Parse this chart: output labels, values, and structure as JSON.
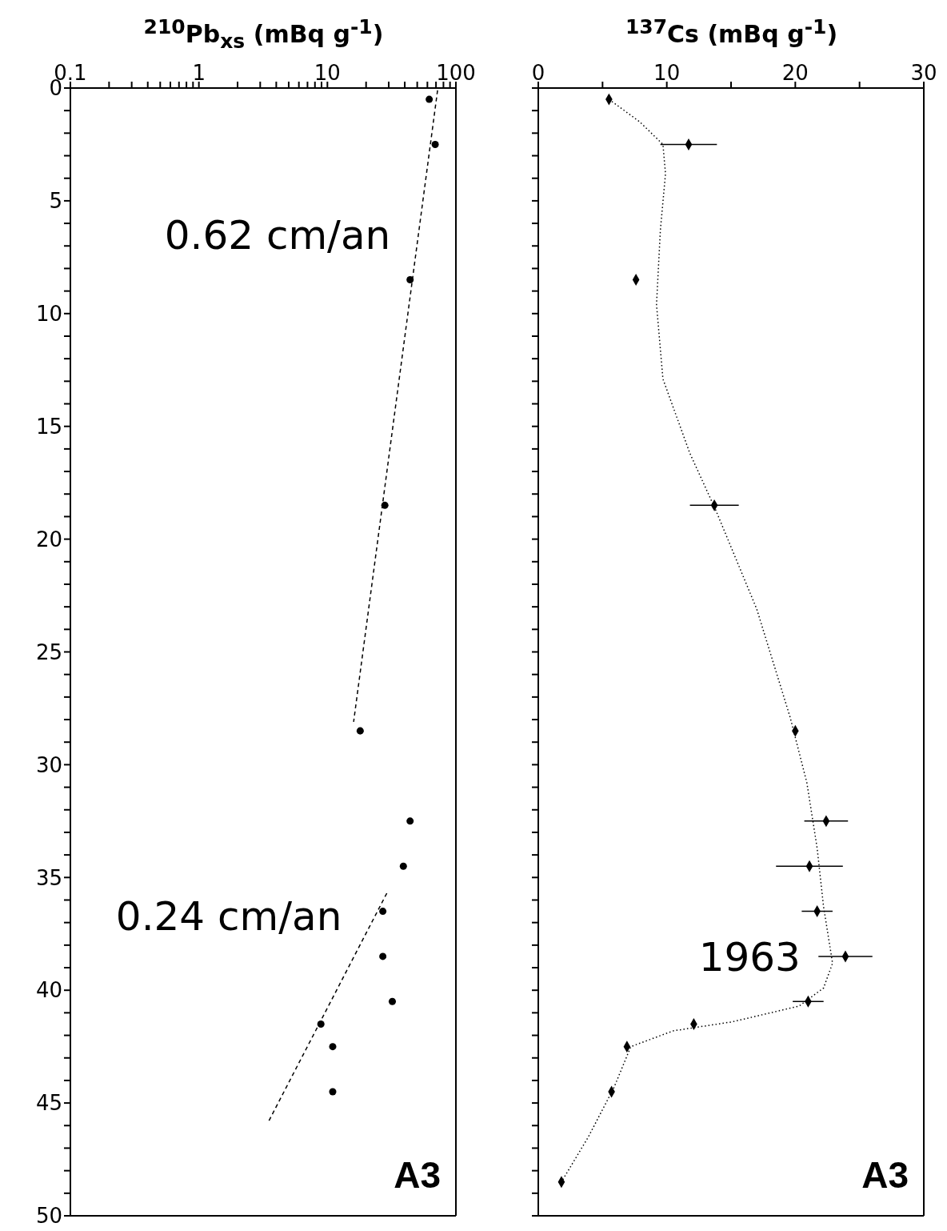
{
  "chart_data": [
    {
      "type": "scatter",
      "xlabel": "$^{210}$Pb$_{xs}$ (mBq g$^{-1}$)",
      "log": "x",
      "xlim": [
        0.1,
        100
      ],
      "xticks": [
        0.1,
        {
          "value": 0.2,
          "label": null
        },
        {
          "value": 0.3,
          "label": null
        },
        {
          "value": 0.4,
          "label": null
        },
        {
          "value": 0.5,
          "label": null
        },
        {
          "value": 0.6,
          "label": null
        },
        {
          "value": 0.7,
          "label": null
        },
        {
          "value": 0.8,
          "label": null
        },
        {
          "value": 0.9,
          "label": null
        },
        1,
        {
          "value": 2,
          "label": null
        },
        {
          "value": 3,
          "label": null
        },
        {
          "value": 4,
          "label": null
        },
        {
          "value": 5,
          "label": null
        },
        {
          "value": 6,
          "label": null
        },
        {
          "value": 7,
          "label": null
        },
        {
          "value": 8,
          "label": null
        },
        {
          "value": 9,
          "label": null
        },
        10,
        {
          "value": 20,
          "label": null
        },
        {
          "value": 30,
          "label": null
        },
        {
          "value": 40,
          "label": null
        },
        {
          "value": 50,
          "label": null
        },
        {
          "value": 60,
          "label": null
        },
        {
          "value": 70,
          "label": null
        },
        {
          "value": 80,
          "label": null
        },
        {
          "value": 90,
          "label": null
        },
        100
      ],
      "ylim": [
        50,
        0
      ],
      "yticks": [
        0,
        {
          "value": 1,
          "label": null
        },
        {
          "value": 2,
          "label": null
        },
        {
          "value": 3,
          "label": null
        },
        {
          "value": 4,
          "label": null
        },
        5,
        {
          "value": 6,
          "label": null
        },
        {
          "value": 7,
          "label": null
        },
        {
          "value": 8,
          "label": null
        },
        {
          "value": 9,
          "label": null
        },
        10,
        {
          "value": 11,
          "label": null
        },
        {
          "value": 12,
          "label": null
        },
        {
          "value": 13,
          "label": null
        },
        {
          "value": 14,
          "label": null
        },
        15,
        {
          "value": 16,
          "label": null
        },
        {
          "value": 17,
          "label": null
        },
        {
          "value": 18,
          "label": null
        },
        {
          "value": 19,
          "label": null
        },
        20,
        {
          "value": 21,
          "label": null
        },
        {
          "value": 22,
          "label": null
        },
        {
          "value": 23,
          "label": null
        },
        {
          "value": 24,
          "label": null
        },
        25,
        {
          "value": 26,
          "label": null
        },
        {
          "value": 27,
          "label": null
        },
        {
          "value": 28,
          "label": null
        },
        {
          "value": 29,
          "label": null
        },
        30,
        {
          "value": 31,
          "label": null
        },
        {
          "value": 32,
          "label": null
        },
        {
          "value": 33,
          "label": null
        },
        {
          "value": 34,
          "label": null
        },
        35,
        {
          "value": 36,
          "label": null
        },
        {
          "value": 37,
          "label": null
        },
        {
          "value": 38,
          "label": null
        },
        {
          "value": 39,
          "label": null
        },
        40,
        {
          "value": 41,
          "label": null
        },
        {
          "value": 42,
          "label": null
        },
        {
          "value": 43,
          "label": null
        },
        {
          "value": 44,
          "label": null
        },
        45,
        {
          "value": 46,
          "label": null
        },
        {
          "value": 47,
          "label": null
        },
        {
          "value": 48,
          "label": null
        },
        {
          "value": 49,
          "label": null
        },
        50
      ],
      "series": [
        {
          "marker": "circle",
          "color": "#000000",
          "x": [
            62,
            69,
            44,
            28,
            18,
            44,
            39,
            27,
            27,
            32,
            8.9,
            11,
            11
          ],
          "values": [
            0.5,
            2.5,
            8.5,
            18.5,
            28.5,
            32.5,
            34.5,
            36.5,
            38.5,
            40.5,
            41.5,
            42.5,
            44.5
          ]
        },
        {
          "type": "line",
          "marker": "none",
          "line_style": "dashed",
          "color": "#000000",
          "x": [
            72,
            16
          ],
          "values": [
            0.1,
            28.1
          ]
        },
        {
          "type": "line",
          "marker": "none",
          "line_style": "dashed",
          "color": "#000000",
          "x": [
            29,
            3.5
          ],
          "values": [
            35.7,
            45.8
          ]
        }
      ],
      "annotations": [
        {
          "text": "0.62 cm/an",
          "x": 55,
          "y": 6.5
        },
        {
          "text": "0.24 cm/an",
          "x": 23,
          "y": 36.7
        },
        "A3"
      ]
    },
    {
      "type": "scatter",
      "xlabel": "$^{137}$Cs (mBq g$^{-1}$)",
      "xlim": [
        0,
        30
      ],
      "xticks": [
        0,
        {
          "value": 5,
          "label": null
        },
        10,
        {
          "value": 15,
          "label": null
        },
        20,
        {
          "value": 25,
          "label": null
        },
        30
      ],
      "ylim": [
        50,
        0
      ],
      "tick_labels": "x",
      "yticks": [
        0,
        1,
        2,
        3,
        4,
        5,
        6,
        7,
        8,
        9,
        10,
        11,
        12,
        13,
        14,
        15,
        16,
        17,
        18,
        19,
        20,
        21,
        22,
        23,
        24,
        25,
        26,
        27,
        28,
        29,
        30,
        31,
        32,
        33,
        34,
        35,
        36,
        37,
        38,
        39,
        40,
        41,
        42,
        43,
        44,
        45,
        46,
        47,
        48,
        49,
        50
      ],
      "series": [
        {
          "type": "line",
          "marker": "none",
          "line_style": "dotted",
          "color": "#000000",
          "x": [
            5.5,
            7.9,
            9.7,
            9.9,
            9.5,
            9.2,
            9.7,
            11.8,
            13.8,
            17,
            19.6,
            20.9,
            21.7,
            22.2,
            22.9,
            22.2,
            20.3,
            15.1,
            10.5,
            7.2,
            5.9,
            3.9,
            1.8
          ],
          "values": [
            0.5,
            1.5,
            2.5,
            3.8,
            6.3,
            9.6,
            12.9,
            16.2,
            18.7,
            23.1,
            27.9,
            30.8,
            33.7,
            36.3,
            38.8,
            39.9,
            40.7,
            41.4,
            41.8,
            42.5,
            44.3,
            46.5,
            48.5
          ]
        },
        {
          "marker": "diamond",
          "color": "#000000",
          "x": [
            5.5,
            11.7,
            7.6,
            13.7,
            20,
            22.4,
            21.1,
            21.7,
            23.9,
            21,
            12.1,
            6.9,
            5.7,
            1.8
          ],
          "values": [
            0.5,
            2.5,
            8.5,
            18.5,
            28.5,
            32.5,
            34.5,
            36.5,
            38.5,
            40.5,
            41.5,
            42.5,
            44.5,
            48.5
          ],
          "xerrors": [
            null,
            2.2,
            null,
            1.9,
            null,
            1.7,
            2.6,
            1.2,
            2.1,
            1.2,
            null,
            null,
            null,
            null
          ]
        }
      ],
      "annotations": [
        {
          "text": "1963",
          "x": 22.9,
          "y": 38.5
        },
        "A3"
      ]
    }
  ]
}
